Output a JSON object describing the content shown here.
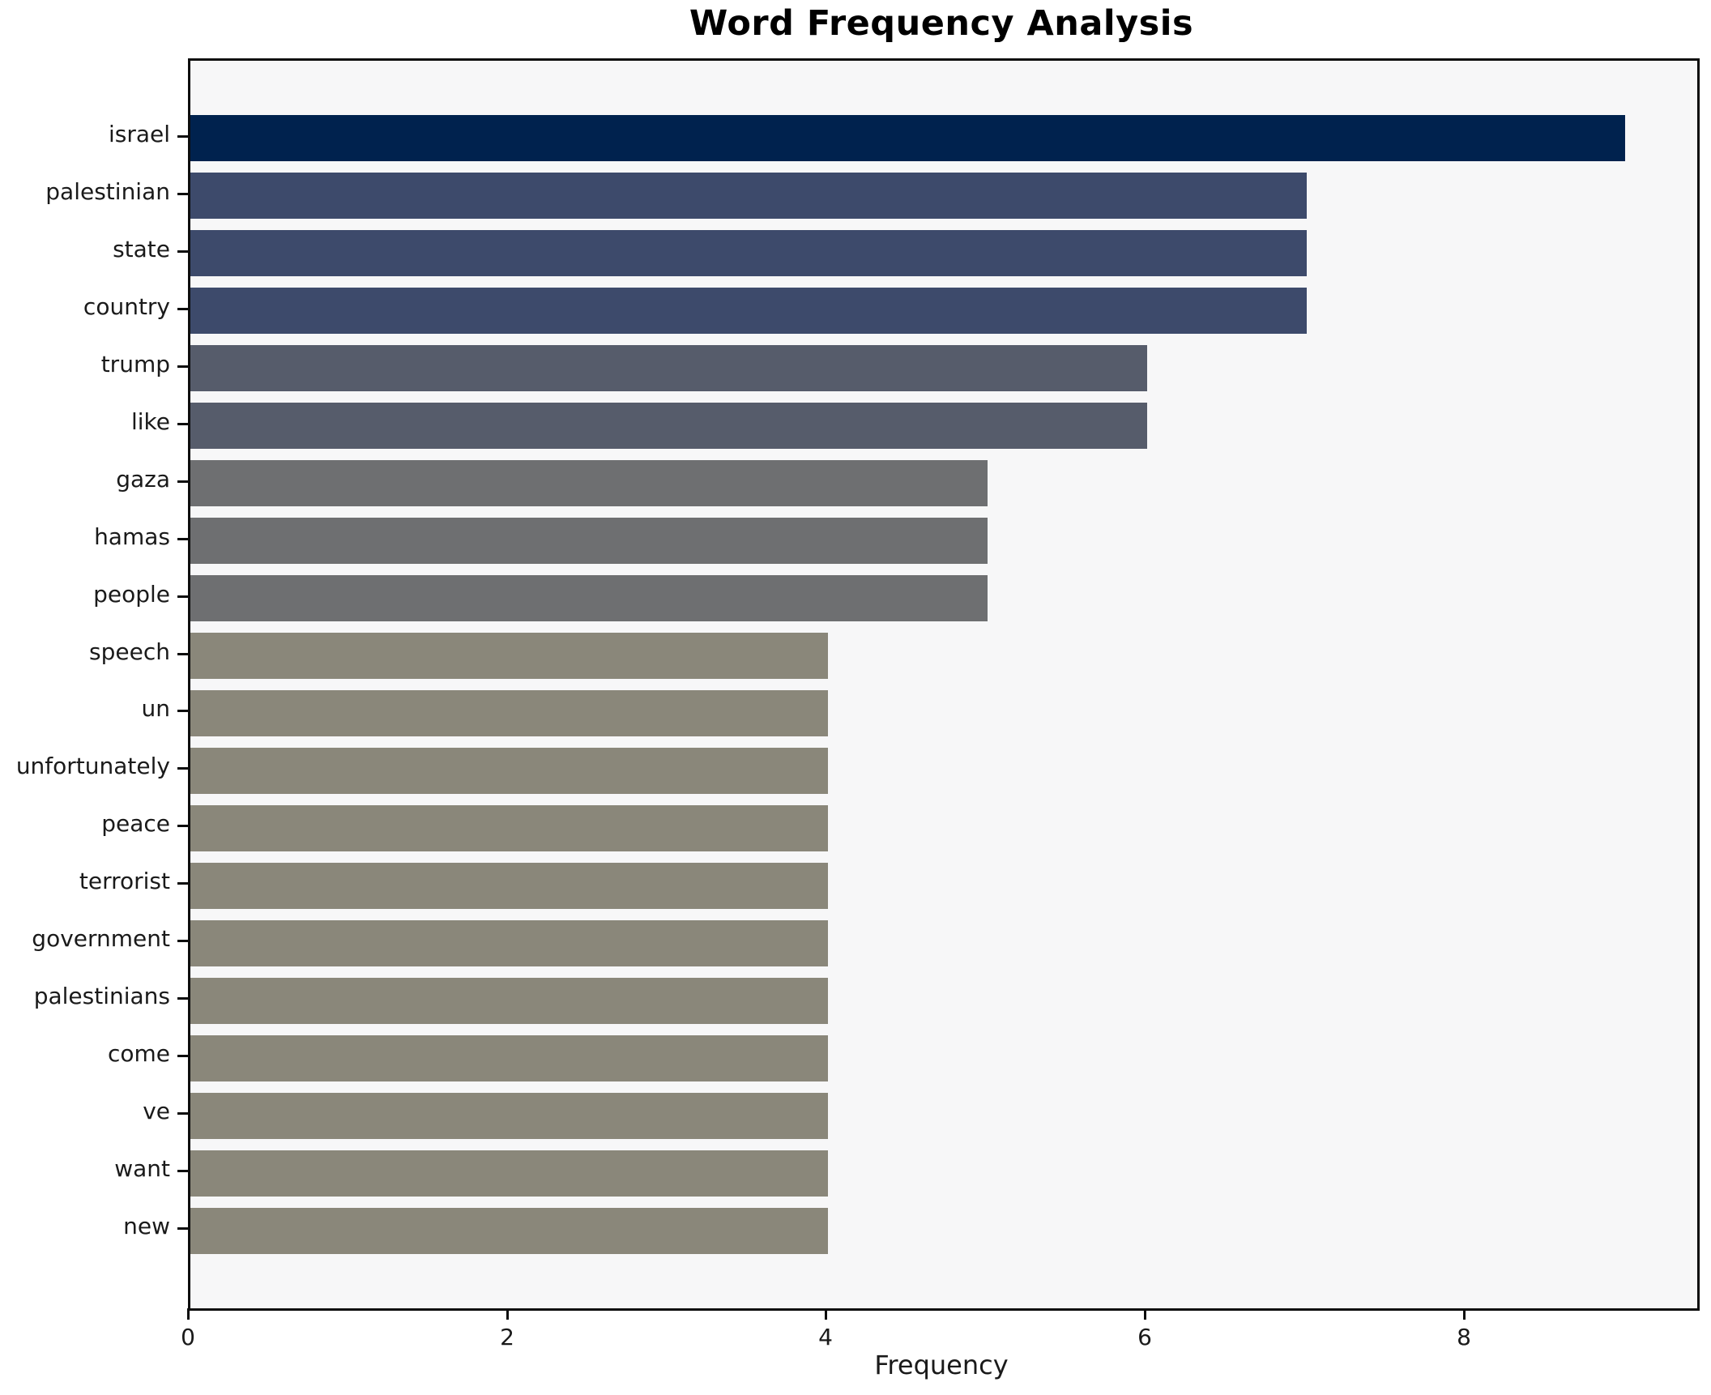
{
  "chart_data": {
    "type": "bar",
    "orientation": "horizontal",
    "title": "Word Frequency Analysis",
    "xlabel": "Frequency",
    "ylabel": "",
    "categories": [
      "israel",
      "palestinian",
      "state",
      "country",
      "trump",
      "like",
      "gaza",
      "hamas",
      "people",
      "speech",
      "un",
      "unfortunately",
      "peace",
      "terrorist",
      "government",
      "palestinians",
      "come",
      "ve",
      "want",
      "new"
    ],
    "values": [
      9,
      7,
      7,
      7,
      6,
      6,
      5,
      5,
      5,
      4,
      4,
      4,
      4,
      4,
      4,
      4,
      4,
      4,
      4,
      4
    ],
    "bar_colors": [
      "#00224e",
      "#3d4a6b",
      "#3d4a6b",
      "#3d4a6b",
      "#565c6b",
      "#565c6b",
      "#6e6f71",
      "#6e6f71",
      "#6e6f71",
      "#8a877a",
      "#8a877a",
      "#8a877a",
      "#8a877a",
      "#8a877a",
      "#8a877a",
      "#8a877a",
      "#8a877a",
      "#8a877a",
      "#8a877a",
      "#8a877a"
    ],
    "xticks": [
      0,
      2,
      4,
      6,
      8
    ],
    "xlim": [
      0,
      9.45
    ],
    "grid": false,
    "legend": null,
    "plot_background": "#f7f7f8",
    "figure_background": "#ffffff",
    "spine_color": "#0d0d0d"
  }
}
